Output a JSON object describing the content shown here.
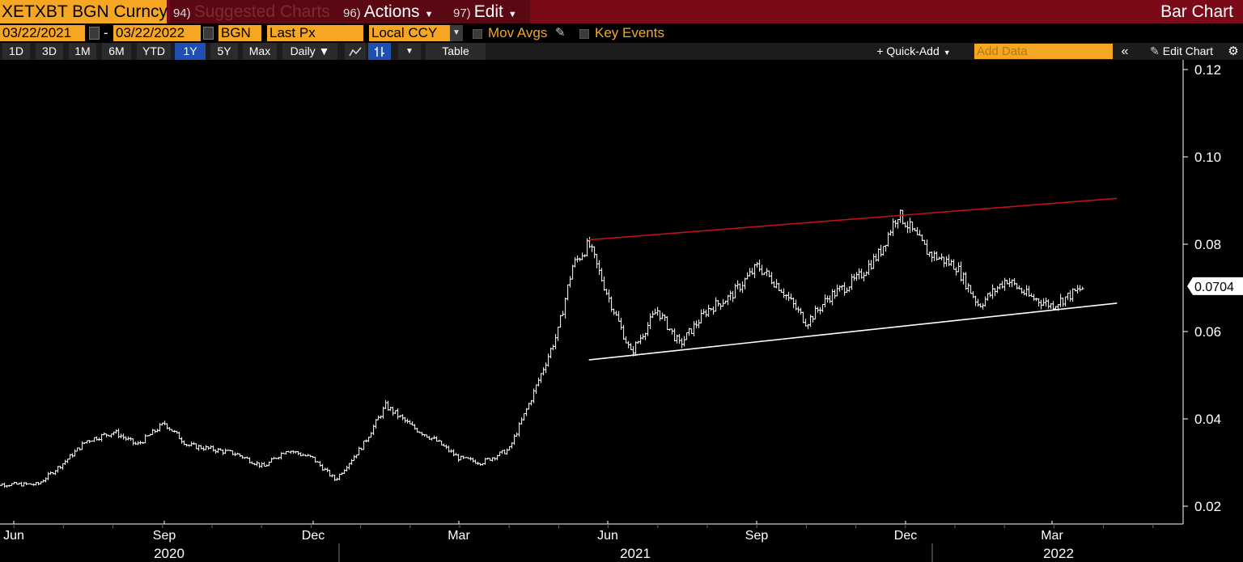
{
  "header": {
    "ticker": "XETXBT BGN Curncy",
    "suggested": {
      "num": "94)",
      "label": "Suggested Charts"
    },
    "actions": {
      "num": "96)",
      "label": "Actions"
    },
    "edit": {
      "num": "97)",
      "label": "Edit"
    },
    "chart_type": "Bar Chart"
  },
  "params": {
    "start_date": "03/22/2021",
    "dash": "-",
    "end_date": "03/22/2022",
    "source": "BGN",
    "field": "Last Px",
    "currency": "Local CCY",
    "mov_avgs": "Mov Avgs",
    "key_events": "Key Events"
  },
  "toolbar": {
    "periods": [
      "1D",
      "3D",
      "1M",
      "6M",
      "YTD",
      "1Y",
      "5Y",
      "Max"
    ],
    "selected_period": "1Y",
    "frequency": "Daily ▼",
    "table": "Table",
    "quick_add": "+ Quick-Add",
    "add_data_placeholder": "Add Data",
    "edit_chart": "Edit Chart"
  },
  "colors": {
    "accent": "#f5a623",
    "title_bar": "#7a0a18",
    "upper_line": "#c0101a",
    "lower_line": "#ffffff"
  },
  "chart_data": {
    "type": "line",
    "style": "ohlc-bar",
    "x_months": [
      "Jun",
      "Sep",
      "Dec",
      "Mar",
      "Jun",
      "Sep",
      "Dec",
      "Mar"
    ],
    "x_years": [
      "2020",
      "2021",
      "2022"
    ],
    "y_ticks": [
      "0.12",
      "0.10",
      "0.08",
      "0.06",
      "0.04",
      "0.02"
    ],
    "ylim": [
      0.02,
      0.12
    ],
    "last_price": "0.0704",
    "series": [
      {
        "x": [
          "2020-05-15",
          "2020-06-15",
          "2020-07-01",
          "2020-07-15",
          "2020-08-01",
          "2020-08-15",
          "2020-09-01",
          "2020-09-15",
          "2020-10-01",
          "2020-10-15",
          "2020-11-01",
          "2020-11-15",
          "2020-12-01",
          "2020-12-15",
          "2021-01-01",
          "2021-01-15",
          "2021-02-01",
          "2021-02-15",
          "2021-03-01",
          "2021-03-15",
          "2021-04-01",
          "2021-04-15",
          "2021-05-01",
          "2021-05-10",
          "2021-05-20",
          "2021-06-01",
          "2021-06-15",
          "2021-07-01",
          "2021-07-15",
          "2021-08-01",
          "2021-08-15",
          "2021-09-01",
          "2021-09-15",
          "2021-10-01",
          "2021-10-15",
          "2021-11-01",
          "2021-11-15",
          "2021-11-26",
          "2021-12-01",
          "2021-12-15",
          "2022-01-01",
          "2022-01-15",
          "2022-02-01",
          "2022-02-15",
          "2022-03-01",
          "2022-03-20"
        ],
        "y": [
          0.025,
          0.025,
          0.03,
          0.035,
          0.037,
          0.034,
          0.039,
          0.034,
          0.033,
          0.032,
          0.029,
          0.033,
          0.031,
          0.026,
          0.034,
          0.043,
          0.038,
          0.035,
          0.031,
          0.03,
          0.033,
          0.045,
          0.06,
          0.075,
          0.08,
          0.068,
          0.055,
          0.065,
          0.057,
          0.065,
          0.068,
          0.075,
          0.07,
          0.062,
          0.068,
          0.072,
          0.078,
          0.087,
          0.085,
          0.078,
          0.075,
          0.066,
          0.072,
          0.068,
          0.066,
          0.07
        ]
      }
    ],
    "annotations": [
      {
        "type": "trendline",
        "color": "red",
        "from": [
          "2021-05-20",
          0.081
        ],
        "to": [
          "2022-04-10",
          0.0905
        ]
      },
      {
        "type": "trendline",
        "color": "white",
        "from": [
          "2021-05-20",
          0.0535
        ],
        "to": [
          "2022-04-10",
          0.0665
        ]
      }
    ]
  }
}
